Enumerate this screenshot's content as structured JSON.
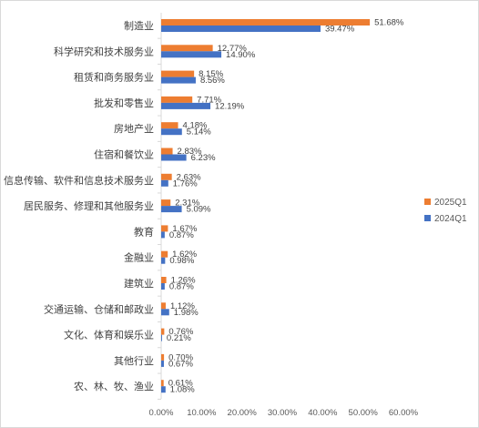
{
  "chart_data": {
    "type": "bar",
    "orientation": "horizontal",
    "categories": [
      "制造业",
      "科学研究和技术服务业",
      "租赁和商务服务业",
      "批发和零售业",
      "房地产业",
      "住宿和餐饮业",
      "信息传输、软件和信息技术服务业",
      "居民服务、修理和其他服务业",
      "教育",
      "金融业",
      "建筑业",
      "交通运输、仓储和邮政业",
      "文化、体育和娱乐业",
      "其他行业",
      "农、林、牧、渔业"
    ],
    "series": [
      {
        "name": "2025Q1",
        "color": "#ED7D31",
        "values": [
          51.68,
          12.77,
          8.15,
          7.71,
          4.18,
          2.83,
          2.63,
          2.31,
          1.67,
          1.62,
          1.26,
          1.12,
          0.76,
          0.7,
          0.61
        ],
        "labels": [
          "51.68%",
          "12.77%",
          "8.15%",
          "7.71%",
          "4.18%",
          "2.83%",
          "2.63%",
          "2.31%",
          "1.67%",
          "1.62%",
          "1.26%",
          "1.12%",
          "0.76%",
          "0.70%",
          "0.61%"
        ]
      },
      {
        "name": "2024Q1",
        "color": "#4472C4",
        "values": [
          39.47,
          14.9,
          8.56,
          12.19,
          5.14,
          6.23,
          1.76,
          5.09,
          0.87,
          0.98,
          0.87,
          1.98,
          0.21,
          0.67,
          1.08
        ],
        "labels": [
          "39.47%",
          "14.90%",
          "8.56%",
          "12.19%",
          "5.14%",
          "6.23%",
          "1.76%",
          "5.09%",
          "0.87%",
          "0.98%",
          "0.87%",
          "1.98%",
          "0.21%",
          "0.67%",
          "1.08%"
        ]
      }
    ],
    "xlim": [
      0,
      60
    ],
    "xticks": [
      0,
      10,
      20,
      30,
      40,
      50,
      60
    ],
    "xtick_labels": [
      "0.00%",
      "10.00%",
      "20.00%",
      "30.00%",
      "40.00%",
      "50.00%",
      "60.00%"
    ],
    "grid": false,
    "legend_position": "right"
  }
}
